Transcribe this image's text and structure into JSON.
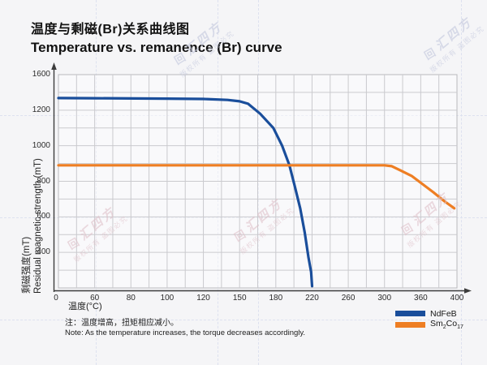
{
  "page": {
    "background": "#f5f5f7"
  },
  "title": {
    "zh": "温度与剩磁(Br)关系曲线图",
    "en": "Temperature vs. remanence (Br) curve"
  },
  "axes": {
    "x_title": "温度(°C)",
    "y_title_zh": "剩磁强度(mT)",
    "y_title_en": "Residual magnetic strength (mT)"
  },
  "legend": {
    "items": [
      {
        "label": "NdFeB",
        "color": "#1a4e9b"
      },
      {
        "label": "Sm2Co17",
        "parts": [
          "Sm",
          "2",
          "Co",
          "17"
        ],
        "color": "#ee7e23"
      }
    ]
  },
  "note": {
    "zh": "注：温度增高，扭矩相应减小。",
    "en": "Note: As the temperature increases, the torque decreases accordingly."
  },
  "watermark": {
    "brand": "汇四方",
    "logo": "回",
    "notice": "版权所有 盗图必究"
  },
  "chart_data": {
    "type": "line",
    "title": "Temperature vs. remanence (Br) curve",
    "xlabel": "温度(°C)",
    "ylabel": "剩磁强度(mT) Residual magnetic strength (mT)",
    "x_ticks": [
      0,
      60,
      80,
      100,
      120,
      150,
      180,
      220,
      260,
      300,
      360,
      400
    ],
    "y_ticks": [
      0,
      400,
      600,
      800,
      1000,
      1200,
      1600
    ],
    "grid": true,
    "legend_position": "bottom-right",
    "axis_color": "#3c3c3c",
    "grid_color": "#cacace",
    "grid_border_color": "#b9b9bd",
    "series": [
      {
        "name": "NdFeB",
        "color": "#1a4e9b",
        "points": [
          [
            0,
            1336
          ],
          [
            60,
            1334
          ],
          [
            100,
            1330
          ],
          [
            120,
            1326
          ],
          [
            140,
            1315
          ],
          [
            150,
            1300
          ],
          [
            157,
            1272
          ],
          [
            167,
            1180
          ],
          [
            178,
            1100
          ],
          [
            187,
            1000
          ],
          [
            195,
            890
          ],
          [
            201,
            770
          ],
          [
            207,
            647
          ],
          [
            212,
            510
          ],
          [
            216,
            346
          ],
          [
            219,
            180
          ],
          [
            220,
            20
          ]
        ]
      },
      {
        "name": "Sm2Co17",
        "color": "#ee7e23",
        "points": [
          [
            0,
            890
          ],
          [
            100,
            890
          ],
          [
            200,
            890
          ],
          [
            300,
            890
          ],
          [
            312,
            885
          ],
          [
            326,
            862
          ],
          [
            345,
            830
          ],
          [
            362,
            784
          ],
          [
            374,
            738
          ],
          [
            386,
            688
          ],
          [
            397,
            648
          ]
        ]
      }
    ]
  }
}
